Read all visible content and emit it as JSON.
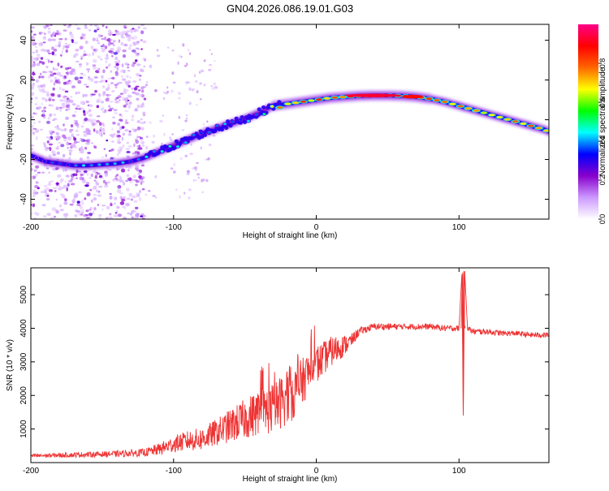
{
  "chart_data": [
    {
      "type": "heatmap",
      "title": "GN04.2026.086.19.01.G03",
      "xlabel": "Height of straight line (km)",
      "ylabel": "Frequency (Hz)",
      "xlim": [
        -200,
        163
      ],
      "ylim": [
        -50,
        48
      ],
      "xticks": [
        -200,
        -100,
        0,
        100
      ],
      "yticks": [
        -40,
        -20,
        0,
        20,
        40
      ],
      "colorbar": {
        "label": "Normalized spectral amplitude",
        "range": [
          0,
          1
        ],
        "ticks": [
          "0.0",
          "0.2",
          "0.4",
          "0.6",
          "0.8"
        ],
        "tick_values": [
          0.0,
          0.2,
          0.4,
          0.6,
          0.8
        ],
        "stops": [
          "#ffffff",
          "#cc99ff",
          "#8800cc",
          "#0000ff",
          "#00ffff",
          "#00ff00",
          "#ffff00",
          "#ff6600",
          "#ff0000",
          "#ff0088"
        ]
      },
      "ridge": {
        "name": "frequency ridge",
        "x": [
          -200,
          -190,
          -180,
          -170,
          -160,
          -150,
          -140,
          -130,
          -120,
          -110,
          -100,
          -90,
          -80,
          -70,
          -60,
          -50,
          -40,
          -30,
          -20,
          -10,
          0,
          10,
          20,
          30,
          40,
          50,
          60,
          70,
          80,
          90,
          100,
          110,
          120,
          130,
          140,
          150,
          160,
          163
        ],
        "y": [
          -18,
          -21,
          -22,
          -23,
          -23,
          -22.5,
          -22,
          -21,
          -19,
          -16,
          -13,
          -10,
          -7,
          -4.5,
          -2,
          0.5,
          3.5,
          7,
          8,
          9,
          10,
          11,
          11.5,
          12,
          12.2,
          12.2,
          12,
          11.5,
          10.5,
          9,
          7,
          5,
          3,
          1,
          -1,
          -3,
          -5,
          -6
        ],
        "peak_amplitude": [
          0.35,
          0.4,
          0.45,
          0.45,
          0.45,
          0.45,
          0.45,
          0.45,
          0.5,
          0.5,
          0.5,
          0.45,
          0.45,
          0.45,
          0.45,
          0.45,
          0.45,
          0.8,
          0.8,
          0.85,
          0.85,
          0.9,
          0.95,
          0.95,
          0.95,
          0.95,
          0.95,
          0.9,
          0.85,
          0.85,
          0.8,
          0.8,
          0.8,
          0.8,
          0.85,
          0.85,
          0.85,
          0.85
        ]
      },
      "noise_region": {
        "xlim": [
          -200,
          -120
        ],
        "ylim": [
          -50,
          48
        ],
        "amplitude": [
          0.05,
          0.3
        ]
      },
      "scattered_noise_region": {
        "xlim": [
          -120,
          -70
        ],
        "ylim": [
          -40,
          40
        ],
        "amplitude": [
          0.05,
          0.15
        ]
      }
    },
    {
      "type": "line",
      "title": "",
      "xlabel": "Height of straight line (km)",
      "ylabel": "SNR (10 * v/v)",
      "xlim": [
        -200,
        163
      ],
      "ylim": [
        0,
        5800
      ],
      "xticks": [
        -200,
        -100,
        0,
        100
      ],
      "yticks": [
        1000,
        2000,
        3000,
        4000,
        5000
      ],
      "series": [
        {
          "name": "SNR",
          "color": "#ee3333",
          "x": [
            -200,
            -180,
            -160,
            -140,
            -120,
            -110,
            -100,
            -90,
            -80,
            -70,
            -60,
            -50,
            -40,
            -30,
            -25,
            -20,
            -15,
            -10,
            -5,
            0,
            5,
            10,
            15,
            20,
            25,
            30,
            40,
            50,
            60,
            70,
            80,
            90,
            100,
            102,
            103,
            104,
            106,
            110,
            120,
            130,
            140,
            150,
            160,
            163
          ],
          "values": [
            200,
            220,
            240,
            260,
            300,
            400,
            550,
            650,
            700,
            900,
            1100,
            1300,
            1500,
            1600,
            1800,
            2000,
            2100,
            2400,
            2700,
            2900,
            3100,
            3300,
            3400,
            3500,
            3650,
            3900,
            4050,
            4050,
            4050,
            4050,
            4050,
            4000,
            4000,
            5600,
            1400,
            5700,
            4000,
            3900,
            3900,
            3850,
            3850,
            3800,
            3800,
            3800
          ],
          "noise_amplitude": [
            60,
            70,
            80,
            90,
            120,
            180,
            250,
            300,
            350,
            400,
            500,
            600,
            700,
            750,
            800,
            850,
            800,
            700,
            650,
            600,
            500,
            450,
            400,
            300,
            200,
            120,
            100,
            100,
            90,
            90,
            90,
            90,
            90,
            0,
            0,
            0,
            90,
            90,
            90,
            80,
            80,
            80,
            80,
            80
          ]
        }
      ]
    }
  ]
}
